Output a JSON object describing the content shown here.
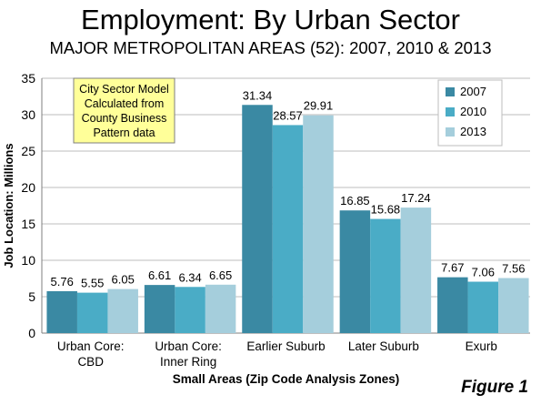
{
  "header": {
    "title": "Employment: By Urban Sector",
    "subtitle": "MAJOR METROPOLITAN AREAS (52): 2007, 2010 & 2013"
  },
  "figure_label": "Figure 1",
  "annotation": {
    "lines": [
      "City Sector Model",
      "Calculated from",
      "County Business",
      "Pattern data"
    ]
  },
  "chart_data": {
    "type": "bar",
    "xlabel": "Small Areas (Zip Code Analysis Zones)",
    "ylabel": "Job Location: Millions",
    "ylim": [
      0,
      35
    ],
    "yticks": [
      0,
      5,
      10,
      15,
      20,
      25,
      30,
      35
    ],
    "grid": true,
    "legend_position": "top-right",
    "categories": [
      [
        "Urban Core:",
        "CBD"
      ],
      [
        "Urban Core:",
        "Inner Ring"
      ],
      [
        "Earlier Suburb"
      ],
      [
        "Later Suburb"
      ],
      [
        "Exurb"
      ]
    ],
    "series": [
      {
        "name": "2007",
        "color": "#3a89a3",
        "values": [
          5.76,
          6.61,
          31.34,
          16.85,
          7.67
        ],
        "labels": [
          "5.76",
          "6.61",
          "31.34",
          "16.85",
          "7.67"
        ]
      },
      {
        "name": "2010",
        "color": "#4aacc6",
        "values": [
          5.55,
          6.34,
          28.57,
          15.68,
          7.06
        ],
        "labels": [
          "5.55",
          "6.34",
          "28.57",
          "15.68",
          "7.06"
        ]
      },
      {
        "name": "2013",
        "color": "#a5cedc",
        "values": [
          6.05,
          6.65,
          29.91,
          17.24,
          7.56
        ],
        "labels": [
          "6.05",
          "6.65",
          "29.91",
          "17.24",
          "7.56"
        ]
      }
    ]
  }
}
